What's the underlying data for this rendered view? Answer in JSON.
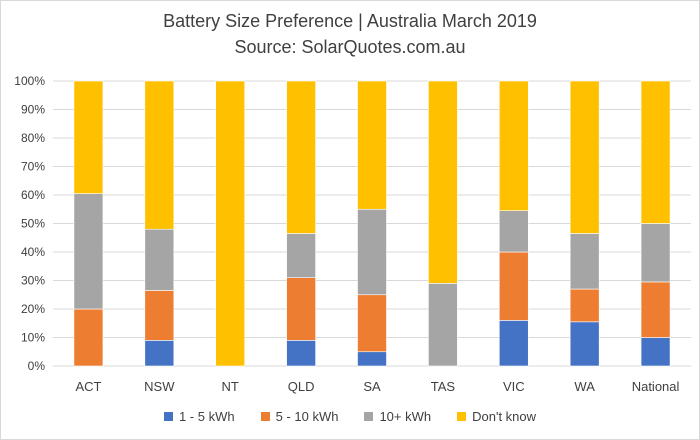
{
  "chart_data": {
    "type": "bar",
    "stacked": true,
    "title": "Battery Size Preference  | Australia March 2019",
    "subtitle": "Source: SolarQuotes.com.au",
    "categories": [
      "ACT",
      "NSW",
      "NT",
      "QLD",
      "SA",
      "TAS",
      "VIC",
      "WA",
      "National"
    ],
    "ylim": [
      0,
      100
    ],
    "yticks": [
      "0%",
      "10%",
      "20%",
      "30%",
      "40%",
      "50%",
      "60%",
      "70%",
      "80%",
      "90%",
      "100%"
    ],
    "grid": true,
    "legend_position": "bottom",
    "series": [
      {
        "name": "1 - 5 kWh",
        "color": "#4472C4",
        "values": [
          0,
          9,
          0,
          9,
          5,
          0,
          16,
          15.5,
          10
        ]
      },
      {
        "name": "5 - 10 kWh",
        "color": "#ED7D31",
        "values": [
          20,
          17.5,
          0,
          22,
          20,
          0,
          24,
          11.5,
          19.5
        ]
      },
      {
        "name": "10+ kWh",
        "color": "#A5A5A5",
        "values": [
          40.5,
          21.5,
          0,
          15.5,
          30,
          29,
          14.5,
          19.5,
          20.5
        ]
      },
      {
        "name": "Don't know",
        "color": "#FFC000",
        "values": [
          39.5,
          52,
          100,
          53.5,
          45,
          71,
          45.5,
          53.5,
          50
        ]
      }
    ]
  }
}
